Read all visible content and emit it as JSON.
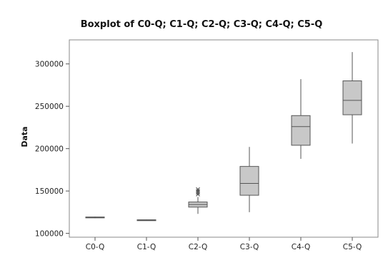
{
  "chart_data": {
    "type": "boxplot",
    "title": "Boxplot of C0-Q; C1-Q; C2-Q; C3-Q; C4-Q; C5-Q",
    "xlabel": "",
    "ylabel": "Data",
    "ylim": [
      98000,
      325000
    ],
    "yticks": [
      100000,
      150000,
      200000,
      250000,
      300000
    ],
    "ytick_labels": [
      "100000",
      "150000",
      "200000",
      "250000",
      "300000"
    ],
    "grid": false,
    "box_color": "#c8c8c8",
    "line_color": "#555555",
    "categories": [
      "C0-Q",
      "C1-Q",
      "C2-Q",
      "C3-Q",
      "C4-Q",
      "C5-Q"
    ],
    "boxes": [
      {
        "min": 118000,
        "q1": 118600,
        "median": 119000,
        "q3": 119300,
        "max": 119800,
        "outliers": []
      },
      {
        "min": 115000,
        "q1": 115400,
        "median": 115700,
        "q3": 116000,
        "max": 116300,
        "outliers": []
      },
      {
        "min": 123000,
        "q1": 131000,
        "median": 134000,
        "q3": 137000,
        "max": 143000,
        "outliers": [
          146000,
          148000,
          150000,
          152000
        ]
      },
      {
        "min": 125000,
        "q1": 145000,
        "median": 159000,
        "q3": 179000,
        "max": 202000,
        "outliers": []
      },
      {
        "min": 188000,
        "q1": 204000,
        "median": 226000,
        "q3": 239000,
        "max": 282000,
        "outliers": []
      },
      {
        "min": 206000,
        "q1": 240000,
        "median": 257000,
        "q3": 280000,
        "max": 314000,
        "outliers": []
      }
    ]
  }
}
